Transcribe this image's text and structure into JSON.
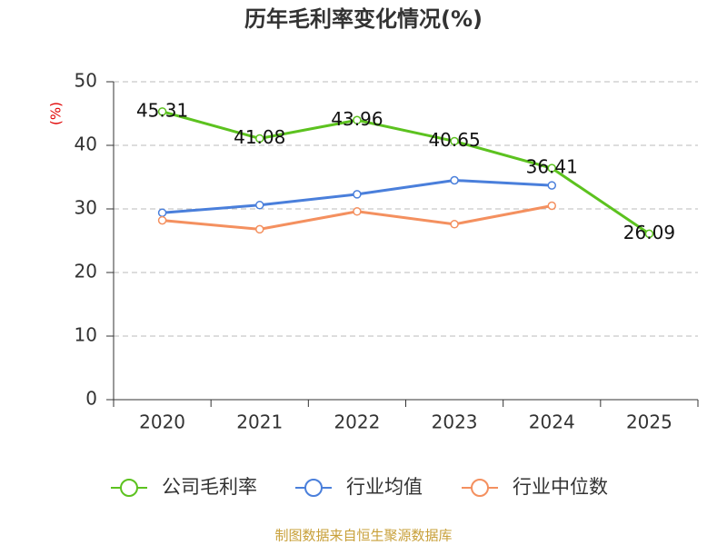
{
  "chart_data": {
    "type": "line",
    "title": "历年毛利率变化情况(%)",
    "y_label": "(%)",
    "categories": [
      "2020",
      "2021",
      "2022",
      "2023",
      "2024",
      "2025"
    ],
    "series": [
      {
        "name": "公司毛利率",
        "color": "#5cc21f",
        "values": [
          45.31,
          41.08,
          43.96,
          40.65,
          36.41,
          26.09
        ],
        "show_labels": true
      },
      {
        "name": "行业均值",
        "color": "#4a7fdb",
        "values": [
          29.4,
          30.6,
          32.3,
          34.5,
          33.7,
          null
        ]
      },
      {
        "name": "行业中位数",
        "color": "#f4905f",
        "values": [
          28.2,
          26.8,
          29.6,
          27.6,
          30.5,
          null
        ]
      }
    ],
    "ylim": [
      0,
      50
    ],
    "yticks": [
      0,
      10,
      20,
      30,
      40,
      50
    ],
    "grid": true,
    "legend": "bottom",
    "source": "制图数据来自恒生聚源数据库"
  }
}
